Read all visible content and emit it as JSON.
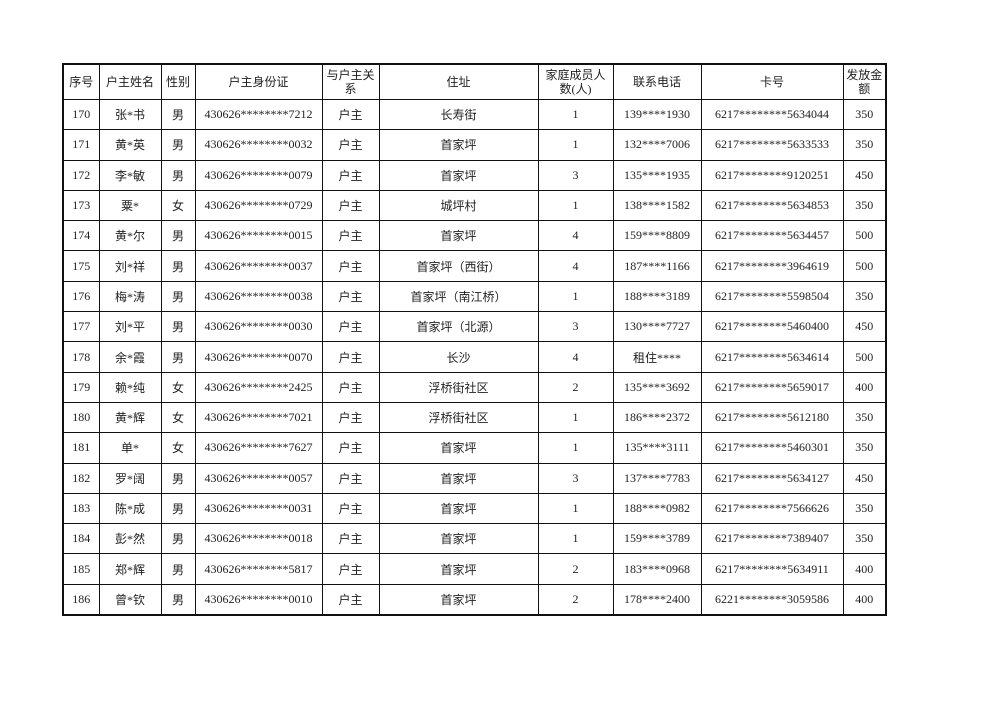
{
  "table": {
    "headers": [
      "序号",
      "户主姓名",
      "性别",
      "户主身份证",
      "与户主关系",
      "住址",
      "家庭成员人数(人)",
      "联系电话",
      "卡号",
      "发放金额"
    ],
    "rows": [
      [
        "170",
        "张*书",
        "男",
        "430626********7212",
        "户主",
        "长寿街",
        "1",
        "139****1930",
        "6217********5634044",
        "350"
      ],
      [
        "171",
        "黄*英",
        "男",
        "430626********0032",
        "户主",
        "首家坪",
        "1",
        "132****7006",
        "6217********5633533",
        "350"
      ],
      [
        "172",
        "李*敏",
        "男",
        "430626********0079",
        "户主",
        "首家坪",
        "3",
        "135****1935",
        "6217********9120251",
        "450"
      ],
      [
        "173",
        "粟*",
        "女",
        "430626********0729",
        "户主",
        "城坪村",
        "1",
        "138****1582",
        "6217********5634853",
        "350"
      ],
      [
        "174",
        "黄*尔",
        "男",
        "430626********0015",
        "户主",
        "首家坪",
        "4",
        "159****8809",
        "6217********5634457",
        "500"
      ],
      [
        "175",
        "刘*祥",
        "男",
        "430626********0037",
        "户主",
        "首家坪（西街）",
        "4",
        "187****1166",
        "6217********3964619",
        "500"
      ],
      [
        "176",
        "梅*涛",
        "男",
        "430626********0038",
        "户主",
        "首家坪（南江桥）",
        "1",
        "188****3189",
        "6217********5598504",
        "350"
      ],
      [
        "177",
        "刘*平",
        "男",
        "430626********0030",
        "户主",
        "首家坪（北源）",
        "3",
        "130****7727",
        "6217********5460400",
        "450"
      ],
      [
        "178",
        "余*霞",
        "男",
        "430626********0070",
        "户主",
        "长沙",
        "4",
        "租住****",
        "6217********5634614",
        "500"
      ],
      [
        "179",
        "赖*纯",
        "女",
        "430626********2425",
        "户主",
        "浮桥街社区",
        "2",
        "135****3692",
        "6217********5659017",
        "400"
      ],
      [
        "180",
        "黄*辉",
        "女",
        "430626********7021",
        "户主",
        "浮桥街社区",
        "1",
        "186****2372",
        "6217********5612180",
        "350"
      ],
      [
        "181",
        "单*",
        "女",
        "430626********7627",
        "户主",
        "首家坪",
        "1",
        "135****3111",
        "6217********5460301",
        "350"
      ],
      [
        "182",
        "罗*阔",
        "男",
        "430626********0057",
        "户主",
        "首家坪",
        "3",
        "137****7783",
        "6217********5634127",
        "450"
      ],
      [
        "183",
        "陈*成",
        "男",
        "430626********0031",
        "户主",
        "首家坪",
        "1",
        "188****0982",
        "6217********7566626",
        "350"
      ],
      [
        "184",
        "彭*然",
        "男",
        "430626********0018",
        "户主",
        "首家坪",
        "1",
        "159****3789",
        "6217********7389407",
        "350"
      ],
      [
        "185",
        "郑*辉",
        "男",
        "430626********5817",
        "户主",
        "首家坪",
        "2",
        "183****0968",
        "6217********5634911",
        "400"
      ],
      [
        "186",
        "曾*钦",
        "男",
        "430626********0010",
        "户主",
        "首家坪",
        "2",
        "178****2400",
        "6221********3059586",
        "400"
      ]
    ]
  }
}
